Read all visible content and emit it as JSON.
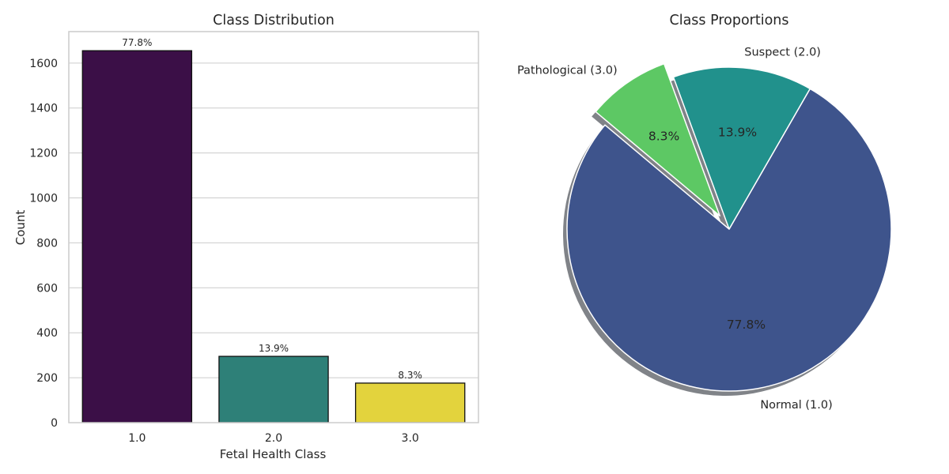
{
  "chart_data": [
    {
      "type": "bar",
      "title": "Class Distribution",
      "xlabel": "Fetal Health Class",
      "ylabel": "Count",
      "categories": [
        "1.0",
        "2.0",
        "3.0"
      ],
      "values": [
        1655,
        295,
        176
      ],
      "data_labels": [
        "77.8%",
        "13.9%",
        "8.3%"
      ],
      "colors": [
        "#3b0f47",
        "#2e8078",
        "#e3d33d"
      ],
      "ylim": [
        0,
        1740
      ],
      "yticks": [
        0,
        200,
        400,
        600,
        800,
        1000,
        1200,
        1400,
        1600
      ],
      "grid": true
    },
    {
      "type": "pie",
      "title": "Class Proportions",
      "labels": [
        "Normal (1.0)",
        "Suspect (2.0)",
        "Pathological (3.0)"
      ],
      "values": [
        77.8,
        13.9,
        8.3
      ],
      "percent_labels": [
        "77.8%",
        "13.9%",
        "8.3%"
      ],
      "colors": [
        "#3e548c",
        "#21918c",
        "#5dc864"
      ],
      "start_angle_deg": 140,
      "explode": [
        0,
        0,
        0.1
      ],
      "shadow": true
    }
  ]
}
